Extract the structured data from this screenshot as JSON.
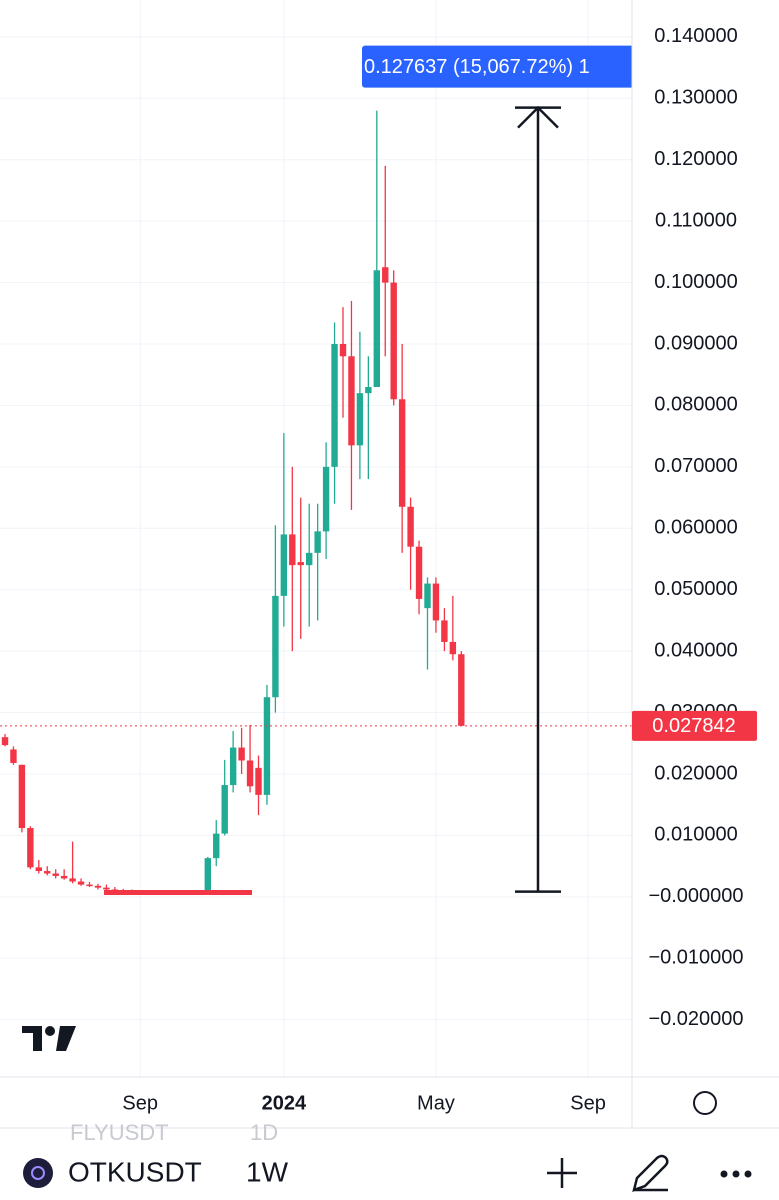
{
  "chart_data": {
    "type": "candlestick",
    "categories": [
      null,
      null,
      null,
      null,
      null,
      null,
      null,
      null,
      null,
      null,
      null,
      null,
      null,
      null,
      null,
      null,
      "Sep",
      null,
      null,
      null,
      null,
      null,
      null,
      null,
      null,
      null,
      null,
      null,
      null,
      null,
      null,
      null,
      null,
      "2024",
      null,
      null,
      null,
      null,
      null,
      null,
      null,
      null,
      null,
      null,
      null,
      null,
      null,
      null,
      null,
      null,
      null,
      "May",
      null,
      null,
      null,
      null,
      null,
      null,
      null,
      null,
      null,
      null,
      null,
      null,
      null,
      null,
      null,
      null,
      null,
      "Sep",
      null,
      null,
      null,
      null
    ],
    "open": [
      0.026,
      0.024,
      0.0215,
      0.0112,
      0.0048,
      0.0042,
      0.0038,
      0.0034,
      0.003,
      0.0025,
      0.002,
      0.0018,
      0.0015,
      0.0012,
      0.001,
      0.0009,
      0.0008,
      0.0009,
      0.0008,
      0.0008,
      0.0009,
      0.0007,
      0.0008,
      0.0007,
      0.0008,
      0.0063,
      0.0103,
      0.0182,
      0.0243,
      0.0222,
      0.021,
      0.0166,
      0.0325,
      0.049,
      0.059,
      0.0545,
      0.054,
      0.056,
      0.0595,
      0.07,
      0.09,
      0.088,
      0.0735,
      0.082,
      0.083,
      0.1025,
      0.1,
      0.081,
      0.0635,
      0.057,
      0.047,
      0.051,
      0.045,
      0.0415,
      0.0395,
      null,
      null,
      null,
      null,
      null,
      null,
      null,
      null,
      null,
      null,
      null,
      null,
      null,
      null,
      null,
      null,
      null,
      null,
      null
    ],
    "high": [
      0.0265,
      0.0245,
      0.0215,
      0.0115,
      0.006,
      0.005,
      0.0045,
      0.0045,
      0.009,
      0.003,
      0.0024,
      0.0021,
      0.002,
      0.0016,
      0.0013,
      0.0012,
      0.0011,
      0.0011,
      0.001,
      0.001,
      0.001,
      0.001,
      0.0009,
      0.0009,
      0.0065,
      0.0125,
      0.0223,
      0.027,
      0.0275,
      0.028,
      0.023,
      0.0345,
      0.0605,
      0.0755,
      0.07,
      0.065,
      0.064,
      0.064,
      0.074,
      0.0935,
      0.096,
      0.097,
      0.092,
      0.088,
      0.128,
      0.119,
      0.102,
      0.09,
      0.065,
      0.058,
      0.052,
      0.052,
      0.047,
      0.049,
      0.04,
      null,
      null,
      null,
      null,
      null,
      null,
      null,
      null,
      null,
      null,
      null,
      null,
      null,
      null,
      null,
      null,
      null,
      null,
      null
    ],
    "low": [
      0.0245,
      0.0215,
      0.0105,
      0.0045,
      0.0038,
      0.0035,
      0.003,
      0.0028,
      0.0022,
      0.0018,
      0.0016,
      0.0012,
      0.001,
      0.0008,
      0.0007,
      0.0007,
      0.0006,
      0.0007,
      0.0006,
      0.0006,
      0.0006,
      0.0006,
      0.0006,
      0.0005,
      0.0006,
      0.005,
      0.01,
      0.017,
      0.02,
      0.017,
      0.0133,
      0.015,
      0.03,
      0.044,
      0.04,
      0.042,
      0.044,
      0.045,
      0.055,
      0.064,
      0.078,
      0.063,
      0.068,
      0.068,
      0.083,
      0.088,
      0.08,
      0.056,
      0.05,
      0.046,
      0.037,
      0.043,
      0.04,
      0.0385,
      0.027842,
      null,
      null,
      null,
      null,
      null,
      null,
      null,
      null,
      null,
      null,
      null,
      null,
      null,
      null,
      null,
      null,
      null,
      null,
      null
    ],
    "close": [
      0.0247,
      0.0218,
      0.0112,
      0.0048,
      0.0042,
      0.0038,
      0.0034,
      0.003,
      0.0025,
      0.002,
      0.0018,
      0.0015,
      0.0012,
      0.001,
      0.0009,
      0.0008,
      0.0009,
      0.0008,
      0.0008,
      0.0009,
      0.0007,
      0.0008,
      0.0007,
      0.0008,
      0.0063,
      0.0103,
      0.0182,
      0.0243,
      0.0222,
      0.018,
      0.0166,
      0.0325,
      0.049,
      0.059,
      0.054,
      0.054,
      0.056,
      0.0595,
      0.07,
      0.09,
      0.088,
      0.0735,
      0.082,
      0.083,
      0.102,
      0.1,
      0.081,
      0.0635,
      0.057,
      0.0485,
      0.051,
      0.045,
      0.0415,
      0.0395,
      0.027842,
      null,
      null,
      null,
      null,
      null,
      null,
      null,
      null,
      null,
      null,
      null,
      null,
      null,
      null,
      null,
      null,
      null,
      null,
      null
    ],
    "up_color": "#22ab94",
    "down_color": "#f23645",
    "ylim": [
      -0.029,
      0.146
    ],
    "yticks": [
      {
        "value": 0.14,
        "label": "0.140000"
      },
      {
        "value": 0.13,
        "label": "0.130000"
      },
      {
        "value": 0.12,
        "label": "0.120000"
      },
      {
        "value": 0.11,
        "label": "0.110000"
      },
      {
        "value": 0.1,
        "label": "0.100000"
      },
      {
        "value": 0.09,
        "label": "0.090000"
      },
      {
        "value": 0.08,
        "label": "0.080000"
      },
      {
        "value": 0.07,
        "label": "0.070000"
      },
      {
        "value": 0.06,
        "label": "0.060000"
      },
      {
        "value": 0.05,
        "label": "0.050000"
      },
      {
        "value": 0.04,
        "label": "0.040000"
      },
      {
        "value": 0.03,
        "label": "0.030000"
      },
      {
        "value": 0.02,
        "label": "0.020000"
      },
      {
        "value": 0.01,
        "label": "0.010000"
      },
      {
        "value": 0,
        "label": "−0.000000"
      },
      {
        "value": -0.01,
        "label": "−0.010000"
      },
      {
        "value": -0.02,
        "label": "−0.020000"
      }
    ],
    "grid": true,
    "price_line": {
      "value": 0.027842,
      "label": "0.027842",
      "color": "#f23645"
    },
    "support_line": {
      "value": 0.0007,
      "color": "#f23645"
    },
    "measure": {
      "start": 0.000847,
      "end": 0.128484,
      "label": "0.127637 (15,067.72%) 1",
      "color": "#2962ff"
    }
  },
  "toolbar": {
    "ghost_symbol": "FLYUSDT",
    "ghost_interval": "1D",
    "symbol": "OTKUSDT",
    "interval": "1W"
  }
}
